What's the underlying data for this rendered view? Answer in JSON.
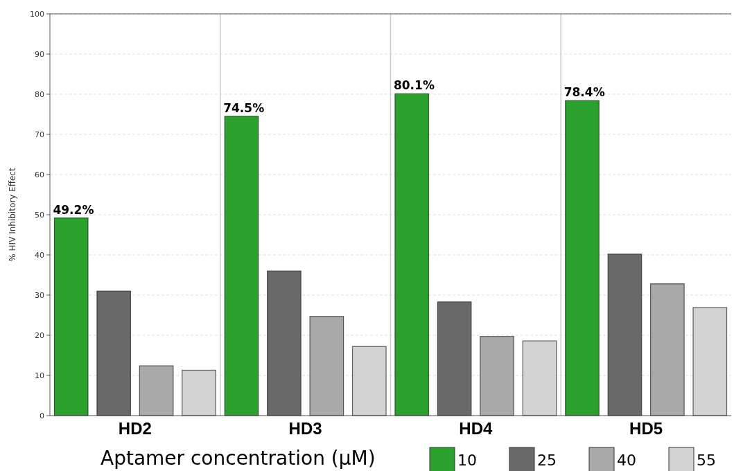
{
  "chart_data": {
    "type": "bar",
    "ylabel": "% HIV Inhibitory Effect",
    "legend_title": "Aptamer concentration (μM)",
    "categories": [
      "HD2",
      "HD3",
      "HD4",
      "HD5"
    ],
    "ylim": [
      0,
      100
    ],
    "yticks": [
      0,
      10,
      20,
      30,
      40,
      50,
      60,
      70,
      80,
      90,
      100
    ],
    "grid": true,
    "legend": "bottom",
    "series": [
      {
        "name": "10",
        "color": "#2ca02c",
        "values": [
          49.2,
          74.5,
          80.1,
          78.4
        ],
        "value_labels": [
          "49.2%",
          "74.5%",
          "80.1%",
          "78.4%"
        ]
      },
      {
        "name": "25",
        "color": "#696969",
        "values": [
          31,
          36,
          28.3,
          40.2
        ]
      },
      {
        "name": "40",
        "color": "#a9a9a9",
        "values": [
          12.4,
          24.7,
          19.7,
          32.8
        ]
      },
      {
        "name": "55",
        "color": "#d3d3d3",
        "values": [
          11.3,
          17.2,
          18.6,
          26.9
        ]
      }
    ]
  }
}
